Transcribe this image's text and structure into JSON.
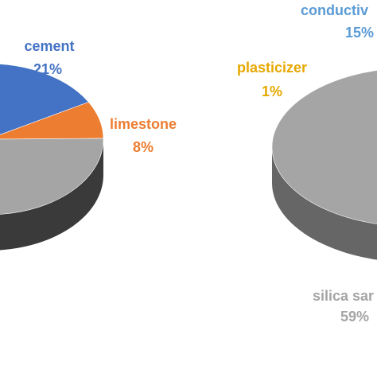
{
  "chart_data": [
    {
      "type": "pie",
      "style": "3d",
      "slices": [
        {
          "label": "cement",
          "value": 21,
          "percent_label": "21%",
          "color": "#4472C4",
          "label_color": "#4472C4"
        },
        {
          "label": "limestone",
          "value": 8,
          "percent_label": "8%",
          "color": "#ED7D31",
          "label_color": "#ED7D31"
        },
        {
          "label": "",
          "value": 71,
          "percent_label": "",
          "color": "#A5A5A5",
          "label_color": "#A5A5A5"
        }
      ]
    },
    {
      "type": "pie",
      "style": "3d",
      "slices": [
        {
          "label": "conductiv",
          "value": 15,
          "percent_label": "15%",
          "color": "#5B9BD5",
          "label_color": "#5B9BD5"
        },
        {
          "label": "plasticizer",
          "value": 1,
          "percent_label": "1%",
          "color": "#FFC000",
          "label_color": "#E6A800"
        },
        {
          "label": "silica sar",
          "value": 59,
          "percent_label": "59%",
          "color": "#A5A5A5",
          "label_color": "#A5A5A5"
        }
      ]
    }
  ]
}
